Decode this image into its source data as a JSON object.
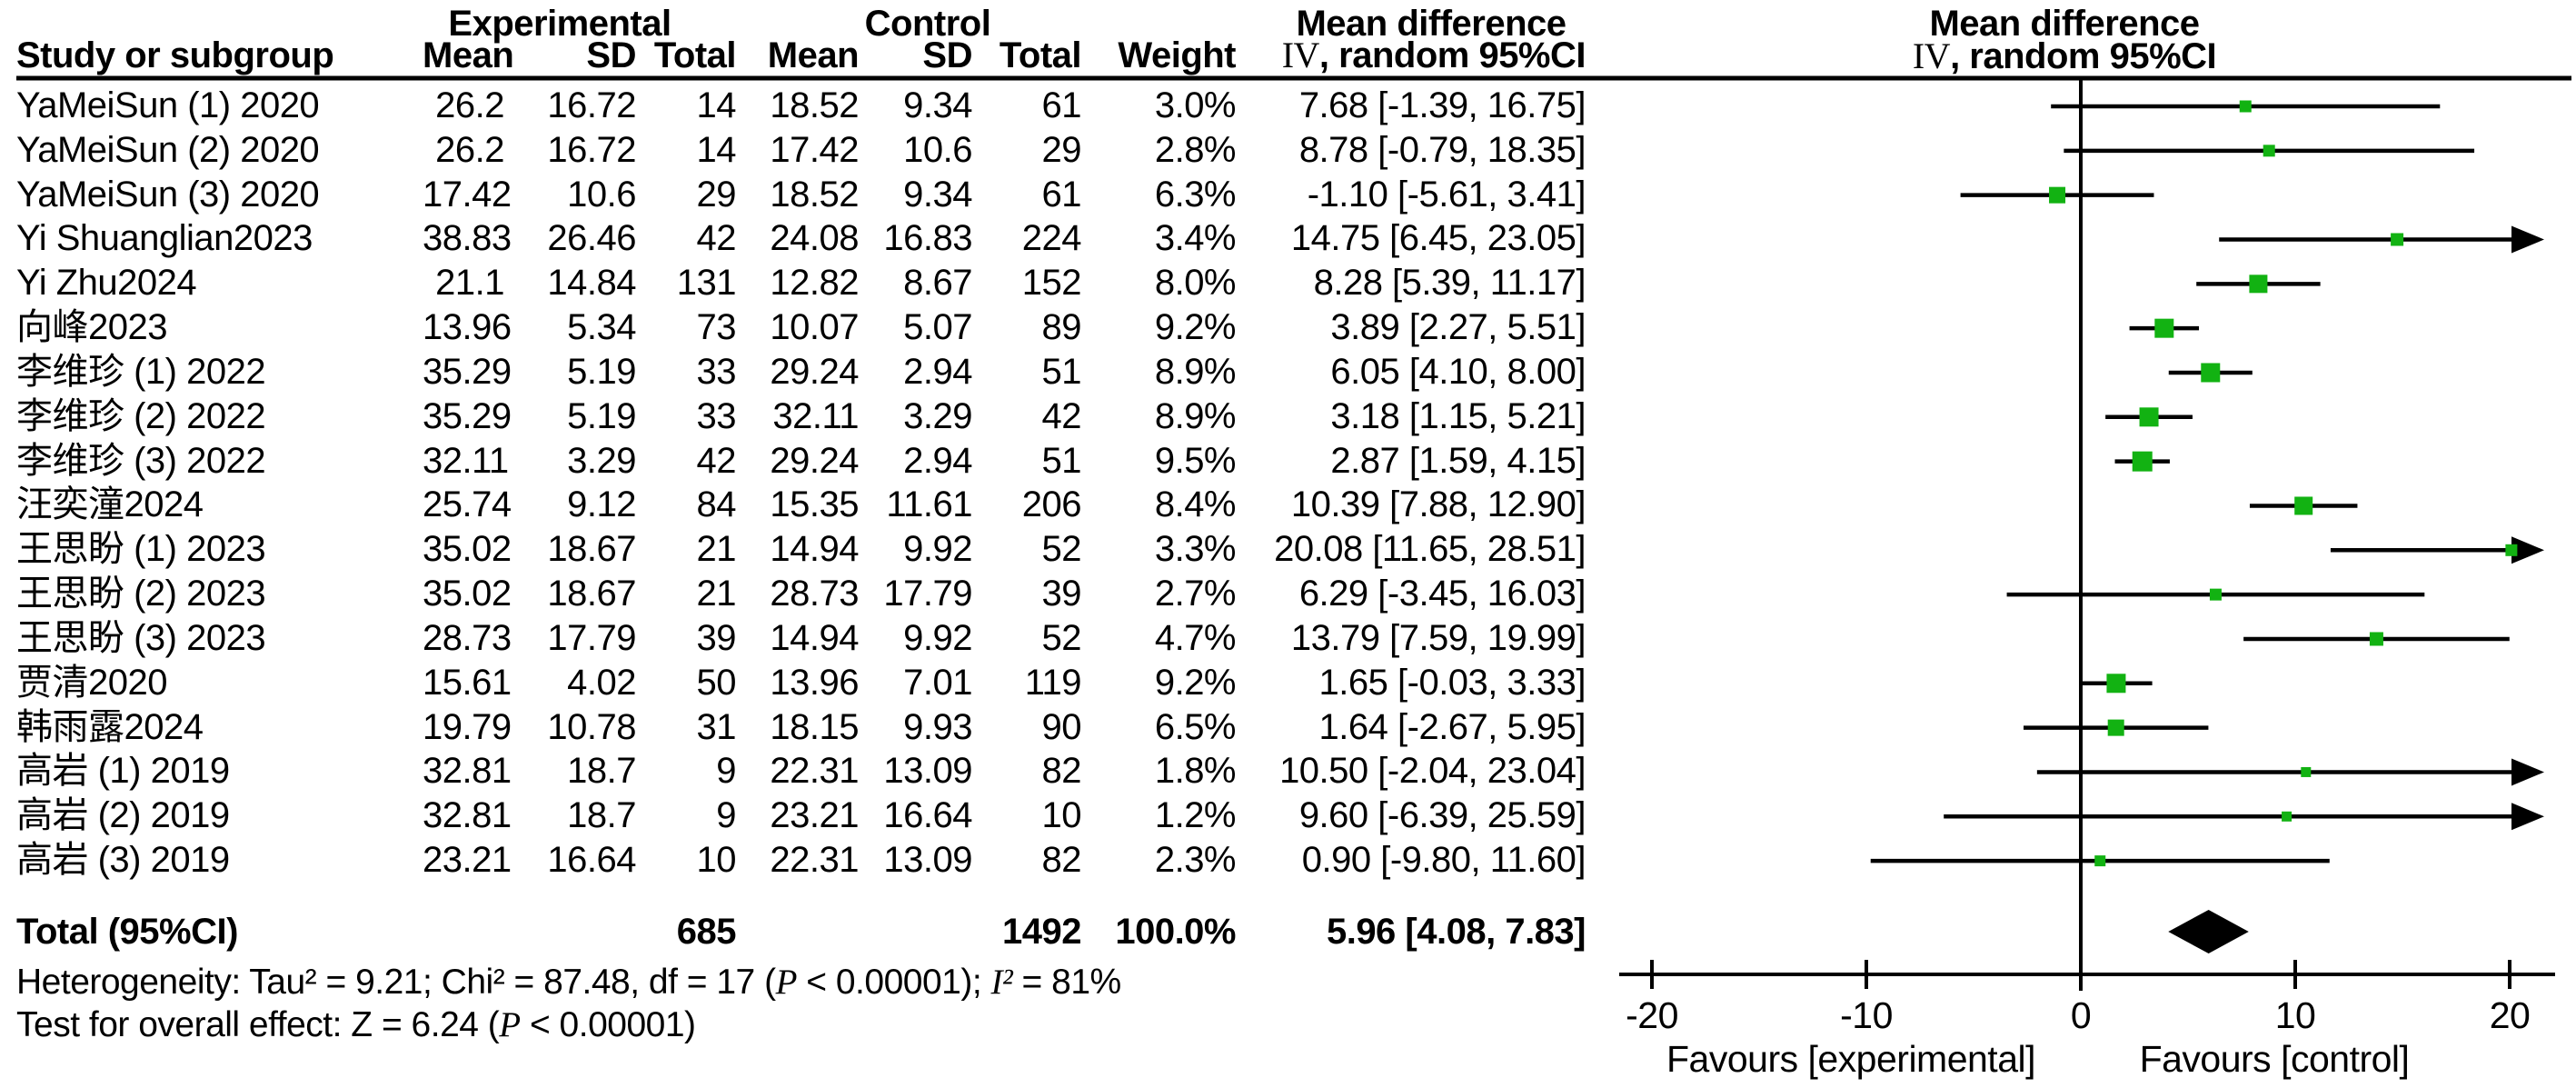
{
  "colors": {
    "marker_green": "#12B212",
    "ink": "#000000"
  },
  "header": {
    "group_experimental": "Experimental",
    "group_control": "Control",
    "group_md_table": "Mean difference",
    "group_md_plot": "Mean difference",
    "col_study": "Study or subgroup",
    "col_mean_exp": "Mean",
    "col_sd_exp": "SD",
    "col_total_exp": "Total",
    "col_mean_ctl": "Mean",
    "col_sd_ctl": "SD",
    "col_total_ctl": "Total",
    "col_weight": "Weight",
    "method_iv": "IV",
    "method_rest": ", random 95%CI",
    "method_iv_plot": "IV",
    "method_rest_plot": ", random 95%CI"
  },
  "chart_data": {
    "type": "forest",
    "effect_measure": "Mean difference (IV, random, 95% CI)",
    "xlim": [
      -20,
      20
    ],
    "x_ticks": [
      -20,
      -10,
      0,
      10,
      20
    ],
    "favours_left": "Favours [experimental]",
    "favours_right": "Favours [control]",
    "studies": [
      {
        "name": "YaMeiSun (1) 2020",
        "exp_mean": "26.2",
        "exp_sd": "16.72",
        "exp_total": "14",
        "ctl_mean": "18.52",
        "ctl_sd": "9.34",
        "ctl_total": "61",
        "weight": "3.0%",
        "md": 7.68,
        "ci_low": -1.39,
        "ci_high": 16.75,
        "md_label": "7.68 [-1.39, 16.75]",
        "weight_pct": 3.0
      },
      {
        "name": "YaMeiSun (2) 2020",
        "exp_mean": "26.2",
        "exp_sd": "16.72",
        "exp_total": "14",
        "ctl_mean": "17.42",
        "ctl_sd": "10.6",
        "ctl_total": "29",
        "weight": "2.8%",
        "md": 8.78,
        "ci_low": -0.79,
        "ci_high": 18.35,
        "md_label": "8.78 [-0.79, 18.35]",
        "weight_pct": 2.8
      },
      {
        "name": "YaMeiSun (3) 2020",
        "exp_mean": "17.42",
        "exp_sd": "10.6",
        "exp_total": "29",
        "ctl_mean": "18.52",
        "ctl_sd": "9.34",
        "ctl_total": "61",
        "weight": "6.3%",
        "md": -1.1,
        "ci_low": -5.61,
        "ci_high": 3.41,
        "md_label": "-1.10 [-5.61, 3.41]",
        "weight_pct": 6.3
      },
      {
        "name": "Yi Shuanglian2023",
        "exp_mean": "38.83",
        "exp_sd": "26.46",
        "exp_total": "42",
        "ctl_mean": "24.08",
        "ctl_sd": "16.83",
        "ctl_total": "224",
        "weight": "3.4%",
        "md": 14.75,
        "ci_low": 6.45,
        "ci_high": 23.05,
        "md_label": "14.75 [6.45, 23.05]",
        "weight_pct": 3.4
      },
      {
        "name": "Yi Zhu2024",
        "exp_mean": "21.1",
        "exp_sd": "14.84",
        "exp_total": "131",
        "ctl_mean": "12.82",
        "ctl_sd": "8.67",
        "ctl_total": "152",
        "weight": "8.0%",
        "md": 8.28,
        "ci_low": 5.39,
        "ci_high": 11.17,
        "md_label": "8.28 [5.39, 11.17]",
        "weight_pct": 8.0
      },
      {
        "name": "向峰2023",
        "exp_mean": "13.96",
        "exp_sd": "5.34",
        "exp_total": "73",
        "ctl_mean": "10.07",
        "ctl_sd": "5.07",
        "ctl_total": "89",
        "weight": "9.2%",
        "md": 3.89,
        "ci_low": 2.27,
        "ci_high": 5.51,
        "md_label": "3.89 [2.27, 5.51]",
        "weight_pct": 9.2
      },
      {
        "name": "李维珍 (1) 2022",
        "exp_mean": "35.29",
        "exp_sd": "5.19",
        "exp_total": "33",
        "ctl_mean": "29.24",
        "ctl_sd": "2.94",
        "ctl_total": "51",
        "weight": "8.9%",
        "md": 6.05,
        "ci_low": 4.1,
        "ci_high": 8.0,
        "md_label": "6.05 [4.10, 8.00]",
        "weight_pct": 8.9
      },
      {
        "name": "李维珍 (2) 2022",
        "exp_mean": "35.29",
        "exp_sd": "5.19",
        "exp_total": "33",
        "ctl_mean": "32.11",
        "ctl_sd": "3.29",
        "ctl_total": "42",
        "weight": "8.9%",
        "md": 3.18,
        "ci_low": 1.15,
        "ci_high": 5.21,
        "md_label": "3.18 [1.15, 5.21]",
        "weight_pct": 8.9
      },
      {
        "name": "李维珍 (3) 2022",
        "exp_mean": "32.11",
        "exp_sd": "3.29",
        "exp_total": "42",
        "ctl_mean": "29.24",
        "ctl_sd": "2.94",
        "ctl_total": "51",
        "weight": "9.5%",
        "md": 2.87,
        "ci_low": 1.59,
        "ci_high": 4.15,
        "md_label": "2.87 [1.59, 4.15]",
        "weight_pct": 9.5
      },
      {
        "name": "汪奕潼2024",
        "exp_mean": "25.74",
        "exp_sd": "9.12",
        "exp_total": "84",
        "ctl_mean": "15.35",
        "ctl_sd": "11.61",
        "ctl_total": "206",
        "weight": "8.4%",
        "md": 10.39,
        "ci_low": 7.88,
        "ci_high": 12.9,
        "md_label": "10.39 [7.88, 12.90]",
        "weight_pct": 8.4
      },
      {
        "name": "王思盼 (1) 2023",
        "exp_mean": "35.02",
        "exp_sd": "18.67",
        "exp_total": "21",
        "ctl_mean": "14.94",
        "ctl_sd": "9.92",
        "ctl_total": "52",
        "weight": "3.3%",
        "md": 20.08,
        "ci_low": 11.65,
        "ci_high": 28.51,
        "md_label": "20.08 [11.65, 28.51]",
        "weight_pct": 3.3
      },
      {
        "name": "王思盼 (2) 2023",
        "exp_mean": "35.02",
        "exp_sd": "18.67",
        "exp_total": "21",
        "ctl_mean": "28.73",
        "ctl_sd": "17.79",
        "ctl_total": "39",
        "weight": "2.7%",
        "md": 6.29,
        "ci_low": -3.45,
        "ci_high": 16.03,
        "md_label": "6.29 [-3.45, 16.03]",
        "weight_pct": 2.7
      },
      {
        "name": "王思盼 (3) 2023",
        "exp_mean": "28.73",
        "exp_sd": "17.79",
        "exp_total": "39",
        "ctl_mean": "14.94",
        "ctl_sd": "9.92",
        "ctl_total": "52",
        "weight": "4.7%",
        "md": 13.79,
        "ci_low": 7.59,
        "ci_high": 19.99,
        "md_label": "13.79 [7.59, 19.99]",
        "weight_pct": 4.7
      },
      {
        "name": "贾清2020",
        "exp_mean": "15.61",
        "exp_sd": "4.02",
        "exp_total": "50",
        "ctl_mean": "13.96",
        "ctl_sd": "7.01",
        "ctl_total": "119",
        "weight": "9.2%",
        "md": 1.65,
        "ci_low": -0.03,
        "ci_high": 3.33,
        "md_label": "1.65 [-0.03, 3.33]",
        "weight_pct": 9.2
      },
      {
        "name": "韩雨露2024",
        "exp_mean": "19.79",
        "exp_sd": "10.78",
        "exp_total": "31",
        "ctl_mean": "18.15",
        "ctl_sd": "9.93",
        "ctl_total": "90",
        "weight": "6.5%",
        "md": 1.64,
        "ci_low": -2.67,
        "ci_high": 5.95,
        "md_label": "1.64 [-2.67, 5.95]",
        "weight_pct": 6.5
      },
      {
        "name": "高岩 (1) 2019",
        "exp_mean": "32.81",
        "exp_sd": "18.7",
        "exp_total": "9",
        "ctl_mean": "22.31",
        "ctl_sd": "13.09",
        "ctl_total": "82",
        "weight": "1.8%",
        "md": 10.5,
        "ci_low": -2.04,
        "ci_high": 23.04,
        "md_label": "10.50 [-2.04, 23.04]",
        "weight_pct": 1.8
      },
      {
        "name": "高岩 (2) 2019",
        "exp_mean": "32.81",
        "exp_sd": "18.7",
        "exp_total": "9",
        "ctl_mean": "23.21",
        "ctl_sd": "16.64",
        "ctl_total": "10",
        "weight": "1.2%",
        "md": 9.6,
        "ci_low": -6.39,
        "ci_high": 25.59,
        "md_label": "9.60 [-6.39, 25.59]",
        "weight_pct": 1.2
      },
      {
        "name": "高岩 (3) 2019",
        "exp_mean": "23.21",
        "exp_sd": "16.64",
        "exp_total": "10",
        "ctl_mean": "22.31",
        "ctl_sd": "13.09",
        "ctl_total": "82",
        "weight": "2.3%",
        "md": 0.9,
        "ci_low": -9.8,
        "ci_high": 11.6,
        "md_label": "0.90 [-9.80, 11.60]",
        "weight_pct": 2.3
      }
    ],
    "total": {
      "label": "Total (95%CI)",
      "exp_total": "685",
      "ctl_total": "1492",
      "weight": "100.0%",
      "md": 5.96,
      "ci_low": 4.08,
      "ci_high": 7.83,
      "md_label": "5.96 [4.08, 7.83]"
    }
  },
  "footer": {
    "het_1": "Heterogeneity: Tau² = 9.21; Chi² = 87.48, df = 17 (",
    "het_p": "P",
    "het_2": " < 0.00001); ",
    "het_i2": "I²",
    "het_3": " = 81%",
    "test_1": "Test for overall effect: Z = 6.24 (",
    "test_p": "P",
    "test_2": " < 0.00001)"
  }
}
